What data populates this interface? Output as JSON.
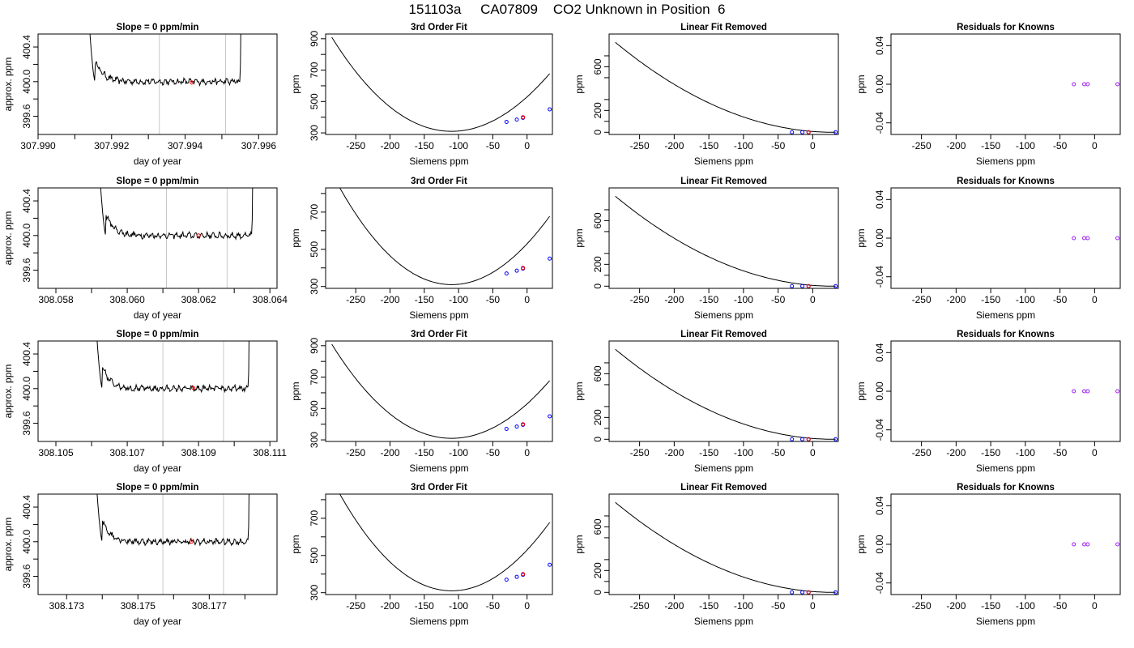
{
  "page": {
    "title": "151103a     CA07809    CO2 Unknown in Position  6"
  },
  "colors": {
    "line": "#000000",
    "window_line": "#c8c8c8",
    "unknown_point": "#ff0000",
    "known_point": "#0000ff",
    "residual_point": "#a020f0"
  },
  "chart_data": [
    {
      "type": "line",
      "row": 1,
      "title": "Slope =  0  ppm/min",
      "xlabel": "day of year",
      "ylabel": "approx. ppm",
      "xlim": [
        307.99,
        307.9965
      ],
      "ylim": [
        399.39,
        400.55
      ],
      "x_ticks": [
        307.99,
        307.992,
        307.994,
        307.996
      ],
      "x_tick_labels": [
        "307.990",
        "307.992",
        "307.994",
        "307.996"
      ],
      "y_ticks": [
        399.6,
        400.0,
        400.4
      ],
      "y_tick_labels": [
        "399.6",
        "400.0",
        "400.4"
      ],
      "window": [
        307.9933,
        307.9951
      ],
      "sample_start": 307.99155,
      "sample_end": 307.9955,
      "unknown_point": {
        "x": 307.99418,
        "y": 399.99
      }
    },
    {
      "type": "line",
      "row": 1,
      "title": "3rd Order Fit",
      "xlabel": "Siemens ppm",
      "ylabel": "ppm",
      "xlim": [
        -294,
        37
      ],
      "ylim": [
        290,
        930
      ],
      "x_ticks": [
        -250,
        -200,
        -150,
        -100,
        -50,
        0
      ],
      "x_tick_labels": [
        "-250",
        "-200",
        "-150",
        "-100",
        "-50",
        "0"
      ],
      "y_ticks": [
        300,
        500,
        700,
        900
      ],
      "y_tick_labels": [
        "300",
        "500",
        "700",
        "900"
      ],
      "known_points": [
        {
          "x": -30,
          "y": 370
        },
        {
          "x": -15,
          "y": 385
        },
        {
          "x": -6,
          "y": 396
        },
        {
          "x": 33,
          "y": 450
        }
      ],
      "unknown_point": {
        "x": -6,
        "y": 400
      }
    },
    {
      "type": "line",
      "row": 1,
      "title": "Linear Fit Removed",
      "xlabel": "Siemens ppm",
      "ylabel": "ppm",
      "xlim": [
        -294,
        37
      ],
      "ylim": [
        -20,
        900
      ],
      "x_ticks": [
        -250,
        -200,
        -150,
        -100,
        -50,
        0
      ],
      "x_tick_labels": [
        "-250",
        "-200",
        "-150",
        "-100",
        "-50",
        "0"
      ],
      "y_ticks": [
        0,
        200,
        600
      ],
      "y_tick_labels": [
        "0",
        "200",
        "600"
      ],
      "known_points": [
        {
          "x": -30,
          "y": 0
        },
        {
          "x": -15,
          "y": 0
        },
        {
          "x": -6,
          "y": 0
        },
        {
          "x": 33,
          "y": 0
        }
      ],
      "unknown_point": {
        "x": -6,
        "y": 0
      }
    },
    {
      "type": "scatter",
      "row": 1,
      "title": "Residuals for Knowns",
      "xlabel": "Siemens ppm",
      "ylabel": "ppm",
      "xlim": [
        -294,
        37
      ],
      "ylim": [
        -0.052,
        0.052
      ],
      "x_ticks": [
        -250,
        -200,
        -150,
        -100,
        -50,
        0
      ],
      "x_tick_labels": [
        "-250",
        "-200",
        "-150",
        "-100",
        "-50",
        "0"
      ],
      "y_ticks": [
        -0.04,
        0.0,
        0.04
      ],
      "y_tick_labels": [
        "-0.04",
        "0.00",
        "0.04"
      ],
      "residual_points": [
        {
          "x": -30,
          "y": 0
        },
        {
          "x": -15,
          "y": 0
        },
        {
          "x": -10,
          "y": 0
        },
        {
          "x": 33,
          "y": 0
        }
      ]
    },
    {
      "type": "line",
      "row": 2,
      "title": "Slope =  0  ppm/min",
      "xlabel": "day of year",
      "ylabel": "approx. ppm",
      "xlim": [
        308.0575,
        308.0642
      ],
      "ylim": [
        399.39,
        400.55
      ],
      "x_ticks": [
        308.058,
        308.06,
        308.062,
        308.064
      ],
      "x_tick_labels": [
        "308.058",
        "308.060",
        "308.062",
        "308.064"
      ],
      "y_ticks": [
        399.6,
        400.0,
        400.4
      ],
      "y_tick_labels": [
        "399.6",
        "400.0",
        "400.4"
      ],
      "window": [
        308.0611,
        308.0628
      ],
      "sample_start": 308.0594,
      "sample_end": 308.0635,
      "unknown_point": {
        "x": 308.062,
        "y": 400.0
      }
    },
    {
      "type": "line",
      "row": 2,
      "title": "3rd Order Fit",
      "xlabel": "Siemens ppm",
      "ylabel": "ppm",
      "xlim": [
        -294,
        37
      ],
      "ylim": [
        290,
        830
      ],
      "x_ticks": [
        -250,
        -200,
        -150,
        -100,
        -50,
        0
      ],
      "x_tick_labels": [
        "-250",
        "-200",
        "-150",
        "-100",
        "-50",
        "0"
      ],
      "y_ticks": [
        300,
        500,
        700
      ],
      "y_tick_labels": [
        "300",
        "500",
        "700"
      ],
      "known_points": [
        {
          "x": -30,
          "y": 370
        },
        {
          "x": -15,
          "y": 385
        },
        {
          "x": -6,
          "y": 396
        },
        {
          "x": 33,
          "y": 450
        }
      ],
      "unknown_point": {
        "x": -6,
        "y": 400
      }
    },
    {
      "type": "line",
      "row": 2,
      "title": "Linear Fit Removed",
      "xlabel": "Siemens ppm",
      "ylabel": "ppm",
      "xlim": [
        -294,
        37
      ],
      "ylim": [
        -20,
        900
      ],
      "x_ticks": [
        -250,
        -200,
        -150,
        -100,
        -50,
        0
      ],
      "x_tick_labels": [
        "-250",
        "-200",
        "-150",
        "-100",
        "-50",
        "0"
      ],
      "y_ticks": [
        0,
        200,
        600
      ],
      "y_tick_labels": [
        "0",
        "200",
        "600"
      ],
      "known_points": [
        {
          "x": -30,
          "y": 0
        },
        {
          "x": -15,
          "y": 0
        },
        {
          "x": -6,
          "y": 0
        },
        {
          "x": 33,
          "y": 0
        }
      ],
      "unknown_point": {
        "x": -6,
        "y": 0
      }
    },
    {
      "type": "scatter",
      "row": 2,
      "title": "Residuals for Knowns",
      "xlabel": "Siemens ppm",
      "ylabel": "ppm",
      "xlim": [
        -294,
        37
      ],
      "ylim": [
        -0.052,
        0.052
      ],
      "x_ticks": [
        -250,
        -200,
        -150,
        -100,
        -50,
        0
      ],
      "x_tick_labels": [
        "-250",
        "-200",
        "-150",
        "-100",
        "-50",
        "0"
      ],
      "y_ticks": [
        -0.04,
        0.0,
        0.04
      ],
      "y_tick_labels": [
        "-0.04",
        "0.00",
        "0.04"
      ],
      "residual_points": [
        {
          "x": -30,
          "y": 0
        },
        {
          "x": -15,
          "y": 0
        },
        {
          "x": -10,
          "y": 0
        },
        {
          "x": 33,
          "y": 0
        }
      ]
    },
    {
      "type": "line",
      "row": 3,
      "title": "Slope =  0  ppm/min",
      "xlabel": "day of year",
      "ylabel": "approx. ppm",
      "xlim": [
        308.1045,
        308.1112
      ],
      "ylim": [
        399.39,
        400.55
      ],
      "x_ticks": [
        308.105,
        308.107,
        308.109,
        308.111
      ],
      "x_tick_labels": [
        "308.105",
        "308.107",
        "308.109",
        "308.111"
      ],
      "y_ticks": [
        399.6,
        400.0,
        400.4
      ],
      "y_tick_labels": [
        "399.6",
        "400.0",
        "400.4"
      ],
      "window": [
        308.108,
        308.1097
      ],
      "sample_start": 308.1063,
      "sample_end": 308.1104,
      "unknown_point": {
        "x": 308.10885,
        "y": 400.01
      }
    },
    {
      "type": "line",
      "row": 3,
      "title": "3rd Order Fit",
      "xlabel": "Siemens ppm",
      "ylabel": "ppm",
      "xlim": [
        -294,
        37
      ],
      "ylim": [
        290,
        930
      ],
      "x_ticks": [
        -250,
        -200,
        -150,
        -100,
        -50,
        0
      ],
      "x_tick_labels": [
        "-250",
        "-200",
        "-150",
        "-100",
        "-50",
        "0"
      ],
      "y_ticks": [
        300,
        500,
        700,
        900
      ],
      "y_tick_labels": [
        "300",
        "500",
        "700",
        "900"
      ],
      "known_points": [
        {
          "x": -30,
          "y": 370
        },
        {
          "x": -15,
          "y": 385
        },
        {
          "x": -6,
          "y": 396
        },
        {
          "x": 33,
          "y": 450
        }
      ],
      "unknown_point": {
        "x": -6,
        "y": 400
      }
    },
    {
      "type": "line",
      "row": 3,
      "title": "Linear Fit Removed",
      "xlabel": "Siemens ppm",
      "ylabel": "ppm",
      "xlim": [
        -294,
        37
      ],
      "ylim": [
        -20,
        900
      ],
      "x_ticks": [
        -250,
        -200,
        -150,
        -100,
        -50,
        0
      ],
      "x_tick_labels": [
        "-250",
        "-200",
        "-150",
        "-100",
        "-50",
        "0"
      ],
      "y_ticks": [
        0,
        200,
        600
      ],
      "y_tick_labels": [
        "0",
        "200",
        "600"
      ],
      "known_points": [
        {
          "x": -30,
          "y": 0
        },
        {
          "x": -15,
          "y": 0
        },
        {
          "x": -6,
          "y": 0
        },
        {
          "x": 33,
          "y": 0
        }
      ],
      "unknown_point": {
        "x": -6,
        "y": 0
      }
    },
    {
      "type": "scatter",
      "row": 3,
      "title": "Residuals for Knowns",
      "xlabel": "Siemens ppm",
      "ylabel": "ppm",
      "xlim": [
        -294,
        37
      ],
      "ylim": [
        -0.052,
        0.052
      ],
      "x_ticks": [
        -250,
        -200,
        -150,
        -100,
        -50,
        0
      ],
      "x_tick_labels": [
        "-250",
        "-200",
        "-150",
        "-100",
        "-50",
        "0"
      ],
      "y_ticks": [
        -0.04,
        0.0,
        0.04
      ],
      "y_tick_labels": [
        "-0.04",
        "0.00",
        "0.04"
      ],
      "residual_points": [
        {
          "x": -30,
          "y": 0
        },
        {
          "x": -15,
          "y": 0
        },
        {
          "x": -10,
          "y": 0
        },
        {
          "x": 33,
          "y": 0
        }
      ]
    },
    {
      "type": "line",
      "row": 4,
      "title": "Slope =  0  ppm/min",
      "xlabel": "day of year",
      "ylabel": "approx. ppm",
      "xlim": [
        308.1722,
        308.1789
      ],
      "ylim": [
        399.39,
        400.55
      ],
      "x_ticks": [
        308.173,
        308.175,
        308.177
      ],
      "x_tick_labels": [
        "308.173",
        "308.175",
        "308.177"
      ],
      "y_ticks": [
        399.6,
        400.0,
        400.4
      ],
      "y_tick_labels": [
        "399.6",
        "400.0",
        "400.4"
      ],
      "window": [
        308.1757,
        308.1774
      ],
      "sample_start": 308.174,
      "sample_end": 308.1781,
      "unknown_point": {
        "x": 308.1765,
        "y": 400.0
      }
    },
    {
      "type": "line",
      "row": 4,
      "title": "3rd Order Fit",
      "xlabel": "Siemens ppm",
      "ylabel": "ppm",
      "xlim": [
        -294,
        37
      ],
      "ylim": [
        290,
        830
      ],
      "x_ticks": [
        -250,
        -200,
        -150,
        -100,
        -50,
        0
      ],
      "x_tick_labels": [
        "-250",
        "-200",
        "-150",
        "-100",
        "-50",
        "0"
      ],
      "y_ticks": [
        300,
        500,
        700
      ],
      "y_tick_labels": [
        "300",
        "500",
        "700"
      ],
      "known_points": [
        {
          "x": -30,
          "y": 370
        },
        {
          "x": -15,
          "y": 385
        },
        {
          "x": -6,
          "y": 396
        },
        {
          "x": 33,
          "y": 450
        }
      ],
      "unknown_point": {
        "x": -6,
        "y": 400
      }
    },
    {
      "type": "line",
      "row": 4,
      "title": "Linear Fit Removed",
      "xlabel": "Siemens ppm",
      "ylabel": "ppm",
      "xlim": [
        -294,
        37
      ],
      "ylim": [
        -20,
        900
      ],
      "x_ticks": [
        -250,
        -200,
        -150,
        -100,
        -50,
        0
      ],
      "x_tick_labels": [
        "-250",
        "-200",
        "-150",
        "-100",
        "-50",
        "0"
      ],
      "y_ticks": [
        0,
        200,
        600
      ],
      "y_tick_labels": [
        "0",
        "200",
        "600"
      ],
      "known_points": [
        {
          "x": -30,
          "y": 0
        },
        {
          "x": -15,
          "y": 0
        },
        {
          "x": -6,
          "y": 0
        },
        {
          "x": 33,
          "y": 0
        }
      ],
      "unknown_point": {
        "x": -6,
        "y": 0
      }
    },
    {
      "type": "scatter",
      "row": 4,
      "title": "Residuals for Knowns",
      "xlabel": "Siemens ppm",
      "ylabel": "ppm",
      "xlim": [
        -294,
        37
      ],
      "ylim": [
        -0.052,
        0.052
      ],
      "x_ticks": [
        -250,
        -200,
        -150,
        -100,
        -50,
        0
      ],
      "x_tick_labels": [
        "-250",
        "-200",
        "-150",
        "-100",
        "-50",
        "0"
      ],
      "y_ticks": [
        -0.04,
        0.0,
        0.04
      ],
      "y_tick_labels": [
        "-0.04",
        "0.00",
        "0.04"
      ],
      "residual_points": [
        {
          "x": -30,
          "y": 0
        },
        {
          "x": -15,
          "y": 0
        },
        {
          "x": -10,
          "y": 0
        },
        {
          "x": 33,
          "y": 0
        }
      ]
    }
  ]
}
